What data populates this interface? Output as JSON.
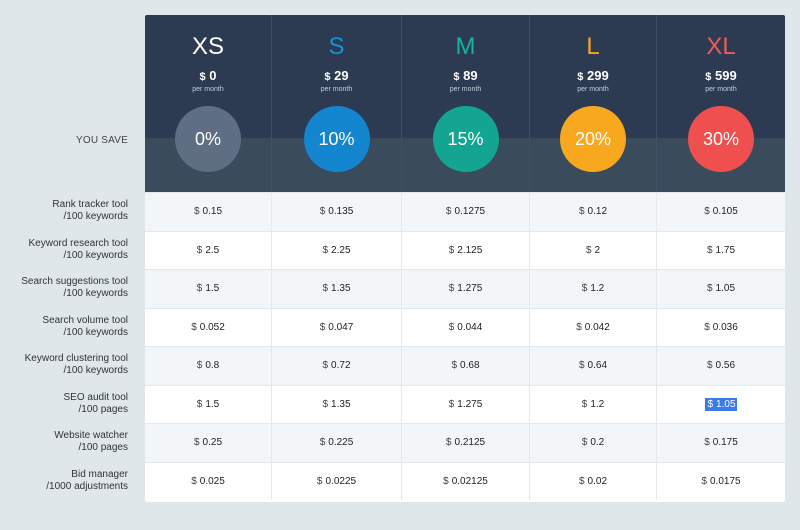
{
  "you_save_label": "YOU SAVE",
  "currency": "$",
  "plans": [
    {
      "name": "XS",
      "price": "0",
      "period": "per month",
      "save": "0%",
      "name_color": "#ffffff",
      "circle_color": "#5f6f83"
    },
    {
      "name": "S",
      "price": "29",
      "period": "per month",
      "save": "10%",
      "name_color": "#1a8fd8",
      "circle_color": "#1486cf"
    },
    {
      "name": "M",
      "price": "89",
      "period": "per month",
      "save": "15%",
      "name_color": "#17b3a0",
      "circle_color": "#13a591"
    },
    {
      "name": "L",
      "price": "299",
      "period": "per month",
      "save": "20%",
      "name_color": "#f6a621",
      "circle_color": "#f7a81e"
    },
    {
      "name": "XL",
      "price": "599",
      "period": "per month",
      "save": "30%",
      "name_color": "#f25a5a",
      "circle_color": "#ef4f4f"
    }
  ],
  "rows": [
    {
      "label_line1": "Rank tracker tool",
      "label_line2": "/100 keywords",
      "values": [
        "0.15",
        "0.135",
        "0.1275",
        "0.12",
        "0.105"
      ]
    },
    {
      "label_line1": "Keyword research tool",
      "label_line2": "/100 keywords",
      "values": [
        "2.5",
        "2.25",
        "2.125",
        "2",
        "1.75"
      ]
    },
    {
      "label_line1": "Search suggestions tool",
      "label_line2": "/100 keywords",
      "values": [
        "1.5",
        "1.35",
        "1.275",
        "1.2",
        "1.05"
      ]
    },
    {
      "label_line1": "Search volume tool",
      "label_line2": "/100 keywords",
      "values": [
        "0.052",
        "0.047",
        "0.044",
        "0.042",
        "0.036"
      ]
    },
    {
      "label_line1": "Keyword clustering tool",
      "label_line2": "/100 keywords",
      "values": [
        "0.8",
        "0.72",
        "0.68",
        "0.64",
        "0.56"
      ]
    },
    {
      "label_line1": "SEO audit tool",
      "label_line2": "/100 pages",
      "values": [
        "1.5",
        "1.35",
        "1.275",
        "1.2",
        "1.05"
      ]
    },
    {
      "label_line1": "Website watcher",
      "label_line2": "/100 pages",
      "values": [
        "0.25",
        "0.225",
        "0.2125",
        "0.2",
        "0.175"
      ]
    },
    {
      "label_line1": "Bid manager",
      "label_line2": "/1000 adjustments",
      "values": [
        "0.025",
        "0.0225",
        "0.02125",
        "0.02",
        "0.0175"
      ]
    }
  ]
}
